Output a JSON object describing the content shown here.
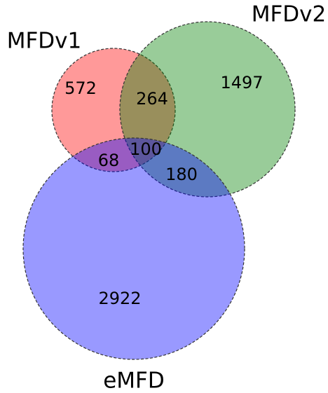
{
  "sets": [
    {
      "label": "MFDv1"
    },
    {
      "label": "MFDv2"
    },
    {
      "label": "eMFD"
    }
  ],
  "regions": [
    {
      "sets": "MFDv1",
      "count": 572
    },
    {
      "sets": "MFDv1&MFDv2",
      "count": 264
    },
    {
      "sets": "MFDv2",
      "count": 1497
    },
    {
      "sets": "MFDv1&eMFD",
      "count": 68
    },
    {
      "sets": "MFDv1&MFDv2&eMFD",
      "count": 100
    },
    {
      "sets": "MFDv2&eMFD",
      "count": 180
    },
    {
      "sets": "eMFD",
      "count": 2922
    }
  ]
}
